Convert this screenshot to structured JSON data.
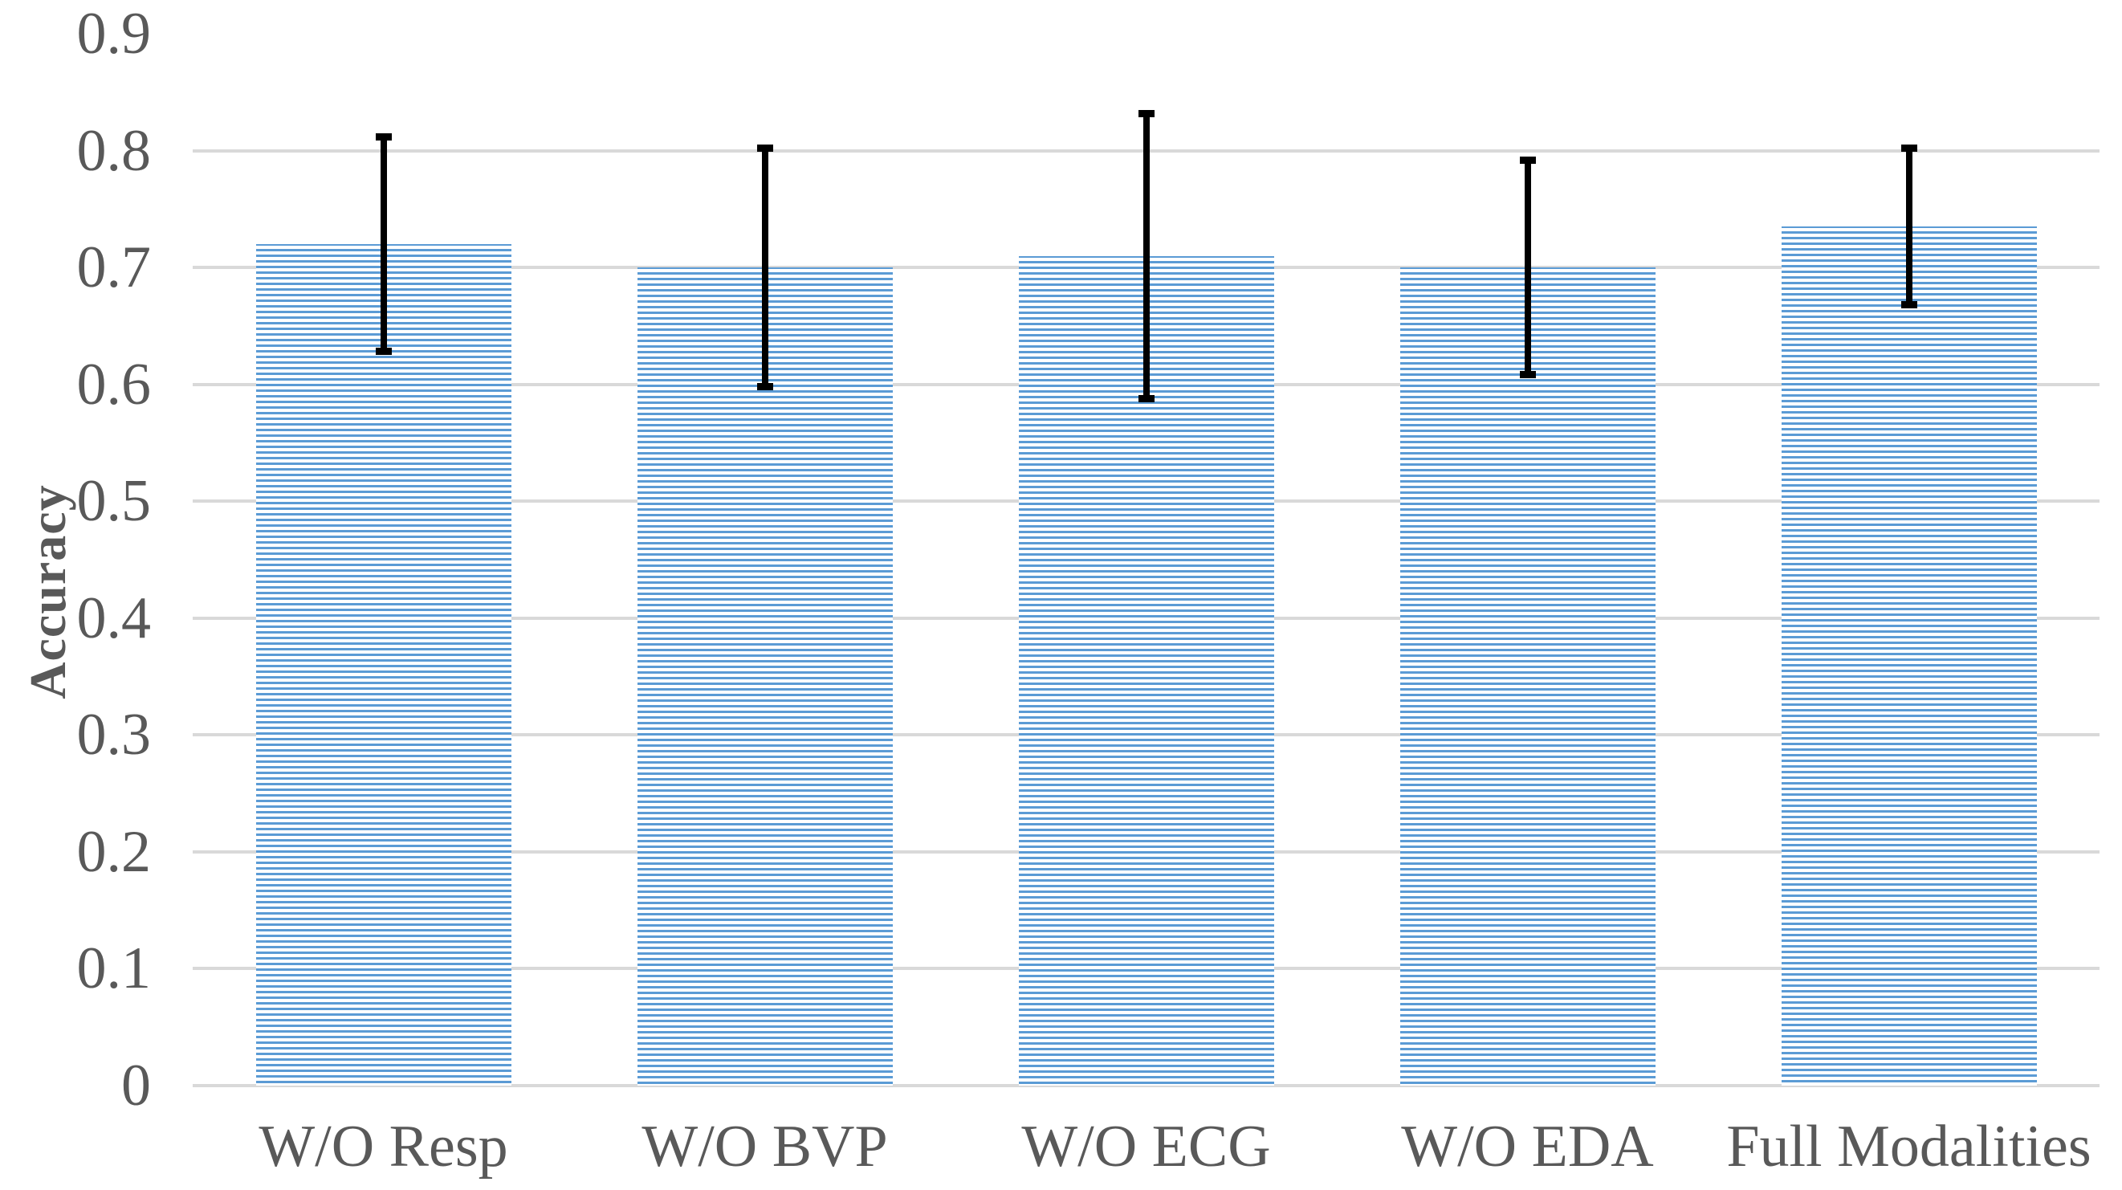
{
  "chart_data": {
    "type": "bar",
    "title": "",
    "categories": [
      "W/O Resp",
      "W/O BVP",
      "W/O ECG",
      "W/O EDA",
      "Full Modalities"
    ],
    "values": [
      0.72,
      0.7,
      0.71,
      0.7,
      0.735
    ],
    "error_bars": [
      0.095,
      0.105,
      0.125,
      0.095,
      0.07
    ],
    "series_name": "Accuracy",
    "xlabel": "",
    "ylabel": "Accuracy",
    "ylim": [
      0,
      0.9
    ],
    "ytick_labels": [
      "0",
      "0.1",
      "0.2",
      "0.3",
      "0.4",
      "0.5",
      "0.6",
      "0.7",
      "0.8",
      "0.9"
    ],
    "yticks": [
      0,
      0.1,
      0.2,
      0.3,
      0.4,
      0.5,
      0.6,
      0.7,
      0.8,
      0.9
    ],
    "grid": "horizontal-major",
    "legend": "none",
    "bar_style": "horizontal-stripes",
    "colors": {
      "bar_stripe": "#5b9bd5",
      "bar_background": "#ffffff",
      "gridline": "#d9d9d9",
      "error_bar": "#000000",
      "label_text": "#595959"
    }
  }
}
